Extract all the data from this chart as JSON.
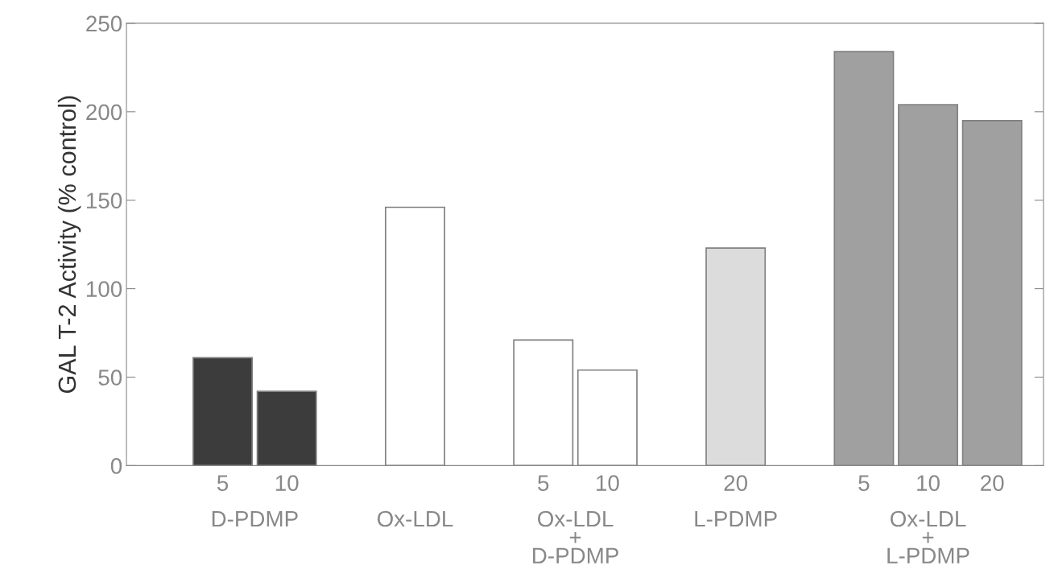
{
  "chart_data": {
    "type": "bar",
    "ylabel": "GAL T-2 Activity (% control)",
    "categories": [
      "5",
      "10",
      null,
      null,
      null,
      "5",
      "10",
      null,
      "20",
      null,
      "5",
      "10",
      "20"
    ],
    "values": [
      61,
      42,
      null,
      146,
      null,
      71,
      54,
      null,
      123,
      null,
      234,
      204,
      195
    ],
    "colors": [
      "#3c3c3c",
      "#3c3c3c",
      null,
      "#ffffff",
      null,
      "#ffffff",
      "#ffffff",
      null,
      "#dcdcdc",
      null,
      "#a0a0a0",
      "#a0a0a0",
      "#a0a0a0"
    ],
    "annotations": [
      "D-PDMP",
      "Ox-LDL",
      "Ox-LDL\n+\nD-PDMP",
      "L-PDMP",
      "Ox-LDL\n+\nL-PDMP"
    ],
    "ylim": [
      0,
      250
    ],
    "yticks": [
      0,
      50,
      100,
      150,
      200,
      250
    ],
    "grid": false
  }
}
